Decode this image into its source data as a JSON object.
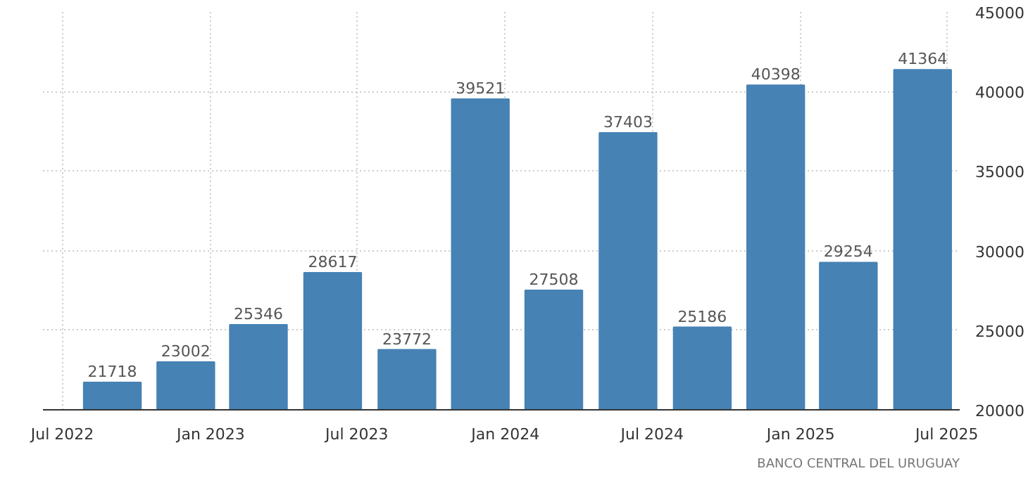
{
  "chart_data": {
    "type": "bar",
    "x": [
      "2022-09",
      "2022-12",
      "2023-03",
      "2023-06",
      "2023-09",
      "2023-12",
      "2024-03",
      "2024-06",
      "2024-09",
      "2024-12",
      "2025-03",
      "2025-06"
    ],
    "values": [
      21718,
      23002,
      25346,
      28617,
      23772,
      39521,
      27508,
      37403,
      25186,
      40398,
      29254,
      41364
    ],
    "color": "#4682b4",
    "data_labels": true,
    "xlim": [
      "2022-06-07",
      "2025-07-17"
    ],
    "xticks": [
      {
        "value": "2022-07",
        "label": "Jul 2022"
      },
      {
        "value": "2023-01",
        "label": "Jan 2023"
      },
      {
        "value": "2023-07",
        "label": "Jul 2023"
      },
      {
        "value": "2024-01",
        "label": "Jan 2024"
      },
      {
        "value": "2024-07",
        "label": "Jul 2024"
      },
      {
        "value": "2025-01",
        "label": "Jan 2025"
      },
      {
        "value": "2025-07",
        "label": "Jul 2025"
      }
    ],
    "ylim": [
      20000,
      45000
    ],
    "yticks": [
      20000,
      25000,
      30000,
      35000,
      40000,
      45000
    ],
    "grid": true,
    "annotations": [
      "BANCO CENTRAL DEL URUGUAY"
    ]
  }
}
